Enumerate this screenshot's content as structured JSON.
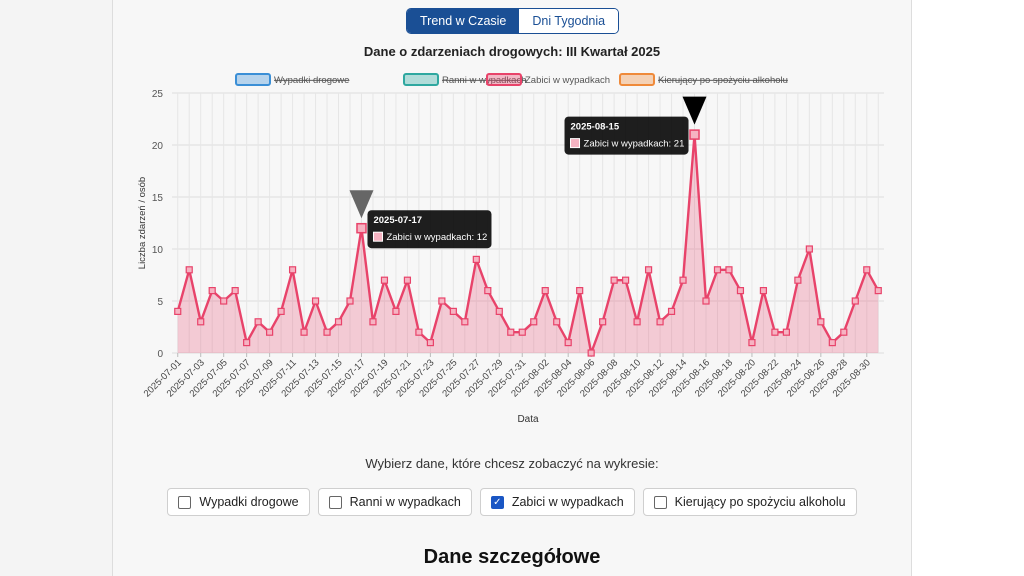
{
  "tabs": [
    {
      "label": "Trend w Czasie",
      "active": true
    },
    {
      "label": "Dni Tygodnia",
      "active": false
    }
  ],
  "chart_data": {
    "type": "line",
    "title": "Dane o zdarzeniach drogowych: III Kwartał 2025",
    "xlabel": "Data",
    "ylabel": "Liczba zdarzeń / osób",
    "ylim": [
      0,
      25
    ],
    "yticks": [
      0,
      5,
      10,
      15,
      20,
      25
    ],
    "grid": true,
    "legend_position": "top-center",
    "legend": [
      {
        "label": "Wypadki drogowe",
        "color": "#3b8fd6",
        "hidden": true
      },
      {
        "label": "Ranni w wypadkach",
        "color": "#2fa8a0",
        "hidden": true
      },
      {
        "label": "Zabici w wypadkach",
        "color": "#e8436a",
        "hidden": false
      },
      {
        "label": "Kierujący po spożyciu alkoholu",
        "color": "#ef8a3a",
        "hidden": true
      }
    ],
    "x": [
      "2025-07-01",
      "2025-07-02",
      "2025-07-03",
      "2025-07-04",
      "2025-07-05",
      "2025-07-06",
      "2025-07-07",
      "2025-07-08",
      "2025-07-09",
      "2025-07-10",
      "2025-07-11",
      "2025-07-12",
      "2025-07-13",
      "2025-07-14",
      "2025-07-15",
      "2025-07-16",
      "2025-07-17",
      "2025-07-18",
      "2025-07-19",
      "2025-07-20",
      "2025-07-21",
      "2025-07-22",
      "2025-07-23",
      "2025-07-24",
      "2025-07-25",
      "2025-07-26",
      "2025-07-27",
      "2025-07-28",
      "2025-07-29",
      "2025-07-30",
      "2025-07-31",
      "2025-08-01",
      "2025-08-02",
      "2025-08-03",
      "2025-08-04",
      "2025-08-05",
      "2025-08-06",
      "2025-08-07",
      "2025-08-08",
      "2025-08-09",
      "2025-08-10",
      "2025-08-11",
      "2025-08-12",
      "2025-08-13",
      "2025-08-14",
      "2025-08-15",
      "2025-08-16",
      "2025-08-17",
      "2025-08-18",
      "2025-08-19",
      "2025-08-20",
      "2025-08-21",
      "2025-08-22",
      "2025-08-23",
      "2025-08-24",
      "2025-08-25",
      "2025-08-26",
      "2025-08-27",
      "2025-08-28",
      "2025-08-29",
      "2025-08-30",
      "2025-08-31"
    ],
    "x_tick_labels": [
      "2025-07-01",
      "2025-07-03",
      "2025-07-05",
      "2025-07-07",
      "2025-07-09",
      "2025-07-11",
      "2025-07-13",
      "2025-07-15",
      "2025-07-17",
      "2025-07-19",
      "2025-07-21",
      "2025-07-23",
      "2025-07-25",
      "2025-07-27",
      "2025-07-29",
      "2025-07-31",
      "2025-08-02",
      "2025-08-04",
      "2025-08-06",
      "2025-08-08",
      "2025-08-10",
      "2025-08-12",
      "2025-08-14",
      "2025-08-16",
      "2025-08-18",
      "2025-08-20",
      "2025-08-22",
      "2025-08-24",
      "2025-08-26",
      "2025-08-28",
      "2025-08-30"
    ],
    "series": [
      {
        "name": "Zabici w wypadkach",
        "color": "#e8436a",
        "values": [
          4,
          8,
          3,
          6,
          5,
          6,
          1,
          3,
          2,
          4,
          8,
          2,
          5,
          2,
          3,
          5,
          12,
          3,
          7,
          4,
          7,
          2,
          1,
          5,
          4,
          3,
          9,
          6,
          4,
          2,
          2,
          3,
          6,
          3,
          1,
          6,
          0,
          3,
          7,
          7,
          3,
          8,
          3,
          4,
          7,
          21,
          5,
          8,
          8,
          6,
          1,
          6,
          2,
          2,
          7,
          10,
          3,
          1,
          2,
          5,
          8,
          6
        ]
      }
    ],
    "tooltips": [
      {
        "date": "2025-07-17",
        "text": "Zabici w wypadkach: 12"
      },
      {
        "date": "2025-08-15",
        "text": "Zabici w wypadkach: 21"
      }
    ]
  },
  "filter": {
    "prompt": "Wybierz dane, które chcesz zobaczyć na wykresie:",
    "options": [
      {
        "label": "Wypadki drogowe",
        "checked": false
      },
      {
        "label": "Ranni w wypadkach",
        "checked": false
      },
      {
        "label": "Zabici w wypadkach",
        "checked": true
      },
      {
        "label": "Kierujący po spożyciu alkoholu",
        "checked": false
      }
    ]
  },
  "details": {
    "heading": "Dane szczegółowe"
  }
}
